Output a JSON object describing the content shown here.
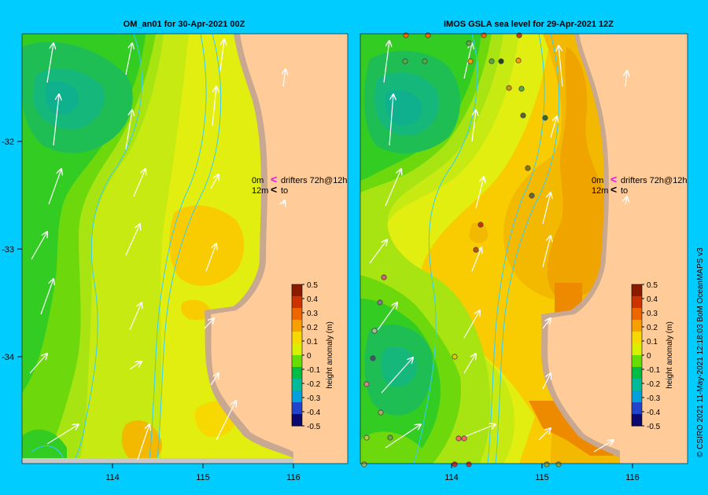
{
  "panels": [
    {
      "title": "OM_an01  for 30-Apr-2021 00Z"
    },
    {
      "title": "IMOS GSLA sea level   for 29-Apr-2021 12Z"
    }
  ],
  "axes": {
    "lon_ticks": [
      "114",
      "115",
      "116"
    ],
    "lat_ticks": [
      "-32",
      "-33",
      "-34"
    ]
  },
  "legend": {
    "line1_depth": "0m",
    "line1_text": "drifters 72h@12h",
    "line2_depth": "12m",
    "line2_text": "to",
    "drifter_marker_color": "#ff00ff",
    "to_marker_color": "#000000"
  },
  "colorbar": {
    "label": "height anomaly (m)",
    "ticks": [
      "0.5",
      "0.4",
      "0.3",
      "0.2",
      "0.1",
      "0",
      "-0.1",
      "-0.2",
      "-0.3",
      "-0.4",
      "-0.5"
    ],
    "colors": [
      "#8b1a00",
      "#cc3300",
      "#ee6600",
      "#f8a000",
      "#f7d800",
      "#d8f000",
      "#66dd00",
      "#00bb44",
      "#00bb99",
      "#00a0dd",
      "#2244cc",
      "#0a0a70"
    ]
  },
  "credit": "© CSIRO 2021   11-May-2021 12:18:03 BoM OceanMAPS v3",
  "colors": {
    "background": "#00ccff",
    "land": "#ffcc99",
    "coast": "#c8a890",
    "isobath": "#33ccff"
  }
}
